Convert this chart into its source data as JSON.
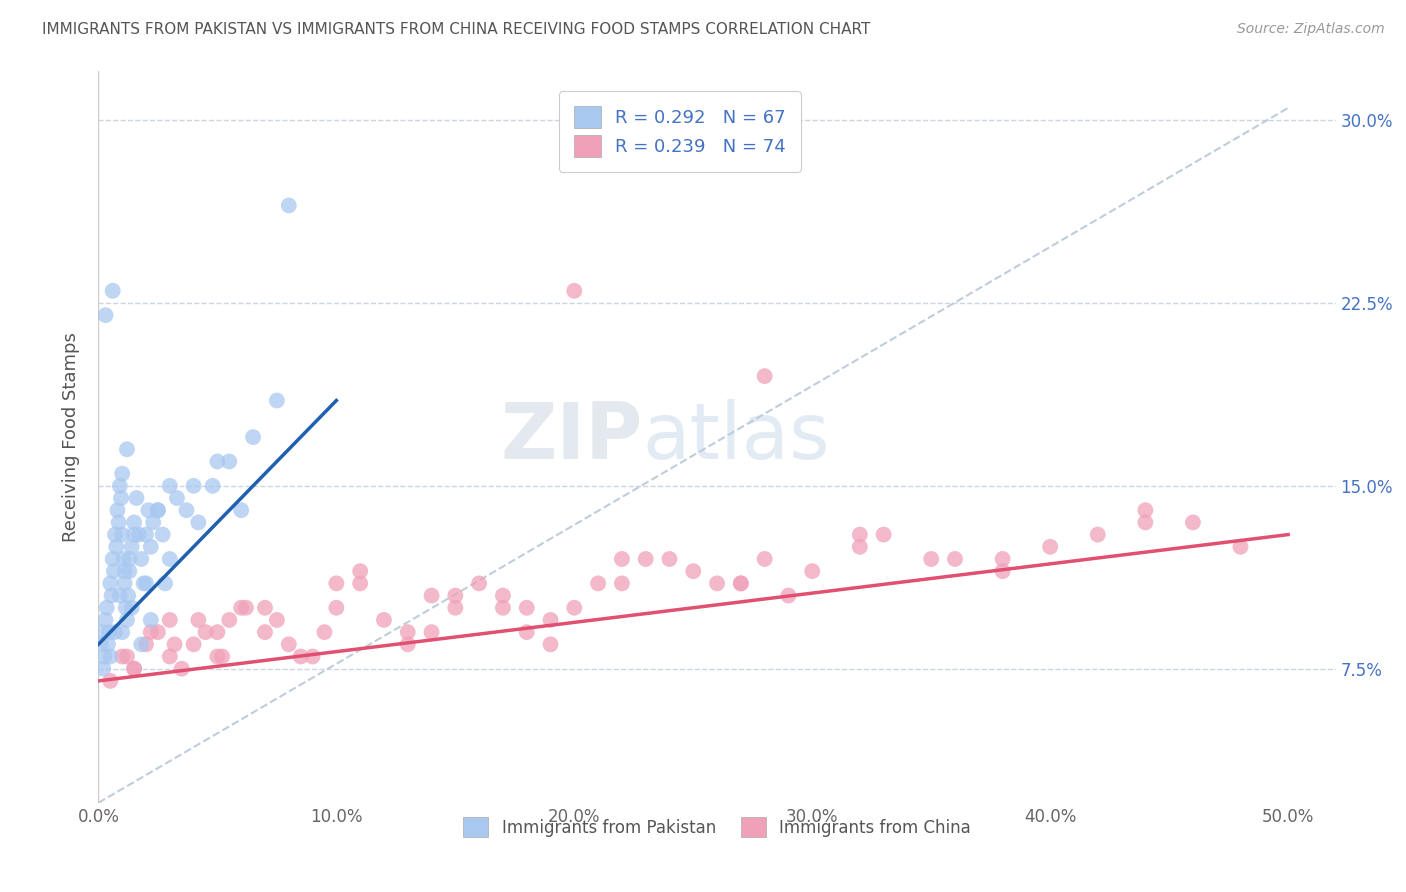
{
  "title": "IMMIGRANTS FROM PAKISTAN VS IMMIGRANTS FROM CHINA RECEIVING FOOD STAMPS CORRELATION CHART",
  "source": "Source: ZipAtlas.com",
  "ylabel": "Receiving Food Stamps",
  "x_tick_labels": [
    "0.0%",
    "10.0%",
    "20.0%",
    "30.0%",
    "40.0%",
    "50.0%"
  ],
  "x_tick_values": [
    0.0,
    10.0,
    20.0,
    30.0,
    40.0,
    50.0
  ],
  "y_tick_labels": [
    "7.5%",
    "15.0%",
    "22.5%",
    "30.0%"
  ],
  "y_tick_values": [
    7.5,
    15.0,
    22.5,
    30.0
  ],
  "xlim": [
    0.0,
    52.0
  ],
  "ylim": [
    2.0,
    32.0
  ],
  "pakistan_color": "#a8c8f0",
  "china_color": "#f0a0b8",
  "pakistan_line_color": "#2060b0",
  "china_line_color": "#e05070",
  "dashed_line_color": "#b8c8d8",
  "R_pakistan": 0.292,
  "N_pakistan": 67,
  "R_china": 0.239,
  "N_china": 74,
  "legend_label_pakistan": "Immigrants from Pakistan",
  "legend_label_china": "Immigrants from China",
  "watermark_zip": "ZIP",
  "watermark_atlas": "atlas",
  "pakistan_x": [
    0.1,
    0.15,
    0.2,
    0.25,
    0.3,
    0.35,
    0.4,
    0.45,
    0.5,
    0.55,
    0.6,
    0.65,
    0.7,
    0.75,
    0.8,
    0.85,
    0.9,
    0.95,
    1.0,
    1.05,
    1.1,
    1.15,
    1.2,
    1.25,
    1.3,
    1.4,
    1.5,
    1.6,
    1.7,
    1.8,
    1.9,
    2.0,
    2.1,
    2.2,
    2.3,
    2.5,
    2.7,
    3.0,
    3.3,
    3.7,
    4.2,
    4.8,
    5.5,
    6.5,
    7.5,
    1.0,
    1.2,
    0.5,
    0.7,
    0.9,
    1.1,
    1.3,
    1.5,
    2.0,
    2.5,
    3.0,
    4.0,
    5.0,
    6.0,
    8.0,
    0.3,
    0.6,
    1.0,
    1.4,
    1.8,
    2.2,
    2.8
  ],
  "pakistan_y": [
    8.5,
    9.0,
    7.5,
    8.0,
    9.5,
    10.0,
    8.5,
    9.0,
    11.0,
    10.5,
    12.0,
    11.5,
    13.0,
    12.5,
    14.0,
    13.5,
    15.0,
    14.5,
    13.0,
    12.0,
    11.0,
    10.0,
    9.5,
    10.5,
    11.5,
    12.5,
    13.5,
    14.5,
    13.0,
    12.0,
    11.0,
    13.0,
    14.0,
    12.5,
    13.5,
    14.0,
    13.0,
    15.0,
    14.5,
    14.0,
    13.5,
    15.0,
    16.0,
    17.0,
    18.5,
    15.5,
    16.5,
    8.0,
    9.0,
    10.5,
    11.5,
    12.0,
    13.0,
    11.0,
    14.0,
    12.0,
    15.0,
    16.0,
    14.0,
    26.5,
    22.0,
    23.0,
    9.0,
    10.0,
    8.5,
    9.5,
    11.0
  ],
  "china_x": [
    0.5,
    1.0,
    1.5,
    2.0,
    2.5,
    3.0,
    3.5,
    4.0,
    4.5,
    5.0,
    5.5,
    6.0,
    7.0,
    8.0,
    9.0,
    10.0,
    11.0,
    12.0,
    13.0,
    14.0,
    15.0,
    16.0,
    17.0,
    18.0,
    19.0,
    20.0,
    22.0,
    24.0,
    26.0,
    28.0,
    30.0,
    33.0,
    36.0,
    40.0,
    44.0,
    48.0,
    1.2,
    2.2,
    3.2,
    4.2,
    5.2,
    6.2,
    7.5,
    8.5,
    9.5,
    11.0,
    13.0,
    15.0,
    17.0,
    19.0,
    21.0,
    23.0,
    25.0,
    27.0,
    29.0,
    32.0,
    35.0,
    38.0,
    42.0,
    46.0,
    1.5,
    3.0,
    5.0,
    7.0,
    10.0,
    14.0,
    18.0,
    22.0,
    27.0,
    32.0,
    38.0,
    44.0,
    20.0,
    28.0
  ],
  "china_y": [
    7.0,
    8.0,
    7.5,
    8.5,
    9.0,
    8.0,
    7.5,
    8.5,
    9.0,
    8.0,
    9.5,
    10.0,
    9.0,
    8.5,
    8.0,
    10.0,
    11.0,
    9.5,
    8.5,
    9.0,
    10.0,
    11.0,
    10.5,
    9.0,
    8.5,
    10.0,
    11.0,
    12.0,
    11.0,
    12.0,
    11.5,
    13.0,
    12.0,
    12.5,
    13.5,
    12.5,
    8.0,
    9.0,
    8.5,
    9.5,
    8.0,
    10.0,
    9.5,
    8.0,
    9.0,
    11.5,
    9.0,
    10.5,
    10.0,
    9.5,
    11.0,
    12.0,
    11.5,
    11.0,
    10.5,
    12.5,
    12.0,
    11.5,
    13.0,
    13.5,
    7.5,
    9.5,
    9.0,
    10.0,
    11.0,
    10.5,
    10.0,
    12.0,
    11.0,
    13.0,
    12.0,
    14.0,
    23.0,
    19.5
  ],
  "pk_line_x0": 0.0,
  "pk_line_x1": 10.0,
  "pk_line_y0": 8.5,
  "pk_line_y1": 18.5,
  "ch_line_x0": 0.0,
  "ch_line_x1": 50.0,
  "ch_line_y0": 7.0,
  "ch_line_y1": 13.0,
  "dash_x0": 0.0,
  "dash_x1": 50.0,
  "dash_y0": 2.0,
  "dash_y1": 30.5
}
